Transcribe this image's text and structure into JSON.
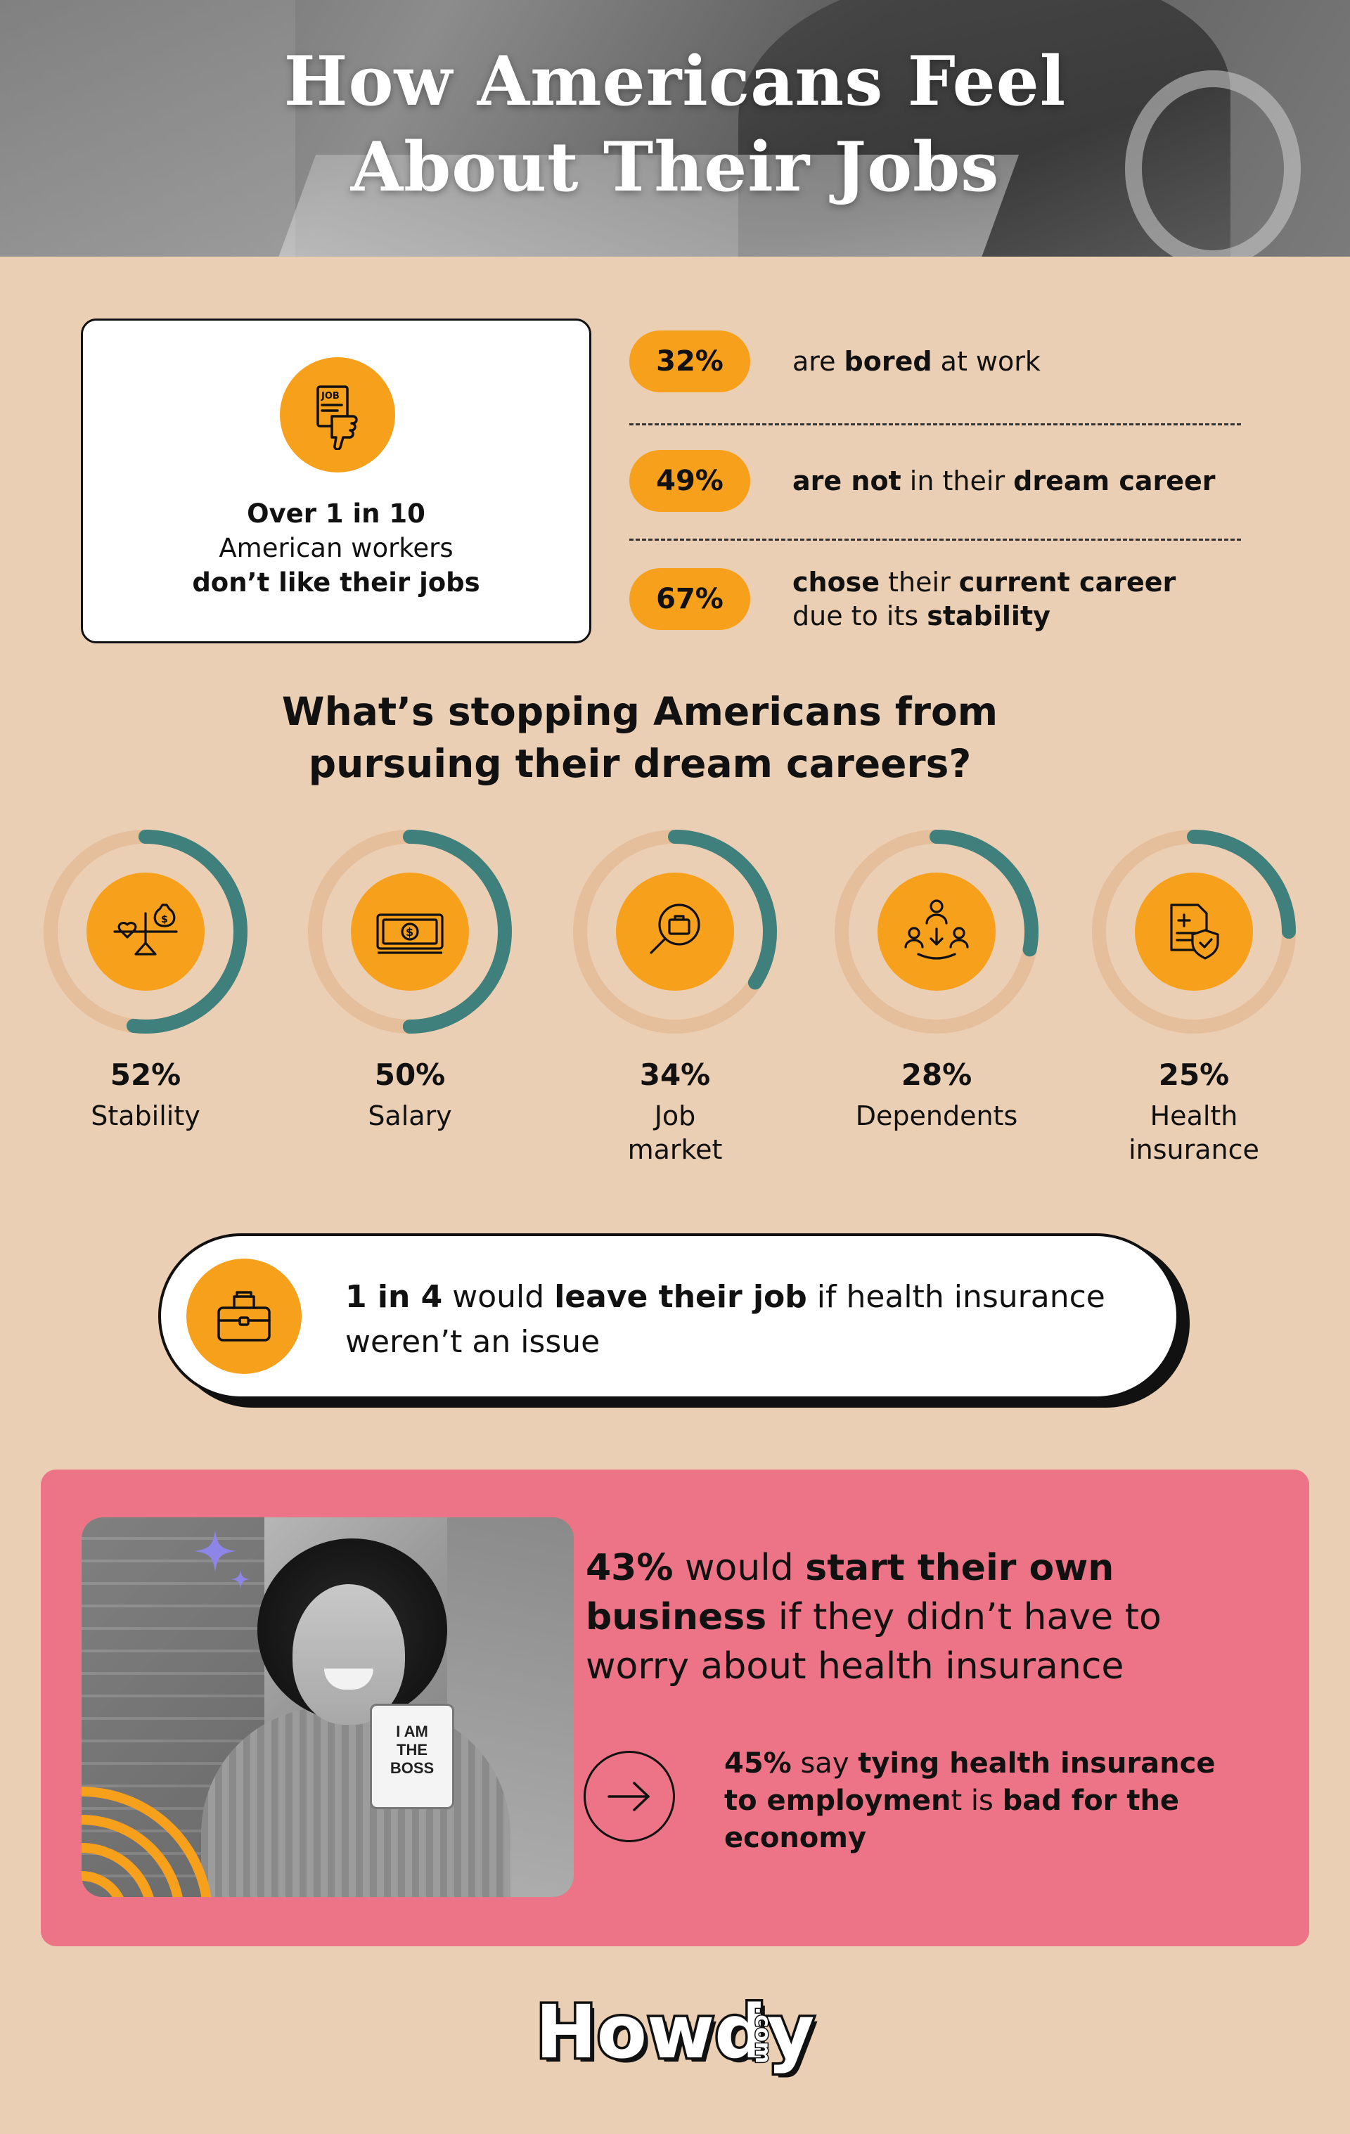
{
  "header": {
    "title_line1": "How Americans Feel",
    "title_line2": "About Their Jobs"
  },
  "job_card": {
    "line1": "Over 1 in 10",
    "line2": "American workers",
    "line3": "don’t like their jobs"
  },
  "stats": [
    {
      "pct": "32%",
      "pre": "are ",
      "bold": "bored",
      "post": " at work"
    },
    {
      "pct": "49%",
      "bold1": "are not",
      "mid": " in their ",
      "bold2": "dream career"
    },
    {
      "pct": "67%",
      "bold1": "chose",
      "mid1": " their ",
      "bold2": "current career",
      "line2_pre": "due to its ",
      "line2_bold": "stability"
    }
  ],
  "section_title": {
    "line1": "What’s stopping Americans from",
    "line2": "pursuing their dream careers?"
  },
  "reasons": [
    {
      "pct": "52%",
      "label_l1": "Stability",
      "label_l2": "",
      "value": 52,
      "icon": "scale-heart-money-icon"
    },
    {
      "pct": "50%",
      "label_l1": "Salary",
      "label_l2": "",
      "value": 50,
      "icon": "cash-icon"
    },
    {
      "pct": "34%",
      "label_l1": "Job",
      "label_l2": "market",
      "value": 34,
      "icon": "magnifier-briefcase-icon"
    },
    {
      "pct": "28%",
      "label_l1": "Dependents",
      "label_l2": "",
      "value": 28,
      "icon": "family-icon"
    },
    {
      "pct": "25%",
      "label_l1": "Health",
      "label_l2": "insurance",
      "value": 25,
      "icon": "health-document-shield-icon"
    }
  ],
  "health_pill": {
    "bold1": "1 in 4",
    "mid1": " would ",
    "bold2": "leave their job",
    "mid2": " if health insurance",
    "line2": "weren’t an issue"
  },
  "business": {
    "bold1": "43%",
    "mid1": " would ",
    "bold2": "start their own",
    "bold3": "business",
    "mid2": " if they didn’t have to",
    "line3": "worry about health insurance",
    "mug_l1": "I AM",
    "mug_l2": "THE",
    "mug_l3": "BOSS"
  },
  "economy": {
    "bold1": "45%",
    "mid1": " say ",
    "bold2": "tying health insurance",
    "bold3": "to employmen",
    "mid2": "t is ",
    "bold4": "bad for the",
    "bold5": "economy"
  },
  "logo": {
    "word": "Howdy",
    "suffix": ".com"
  },
  "colors": {
    "background": "#ebcfb4",
    "orange": "#f7a01c",
    "teal": "#3f7f7c",
    "pink": "#ed7386"
  }
}
